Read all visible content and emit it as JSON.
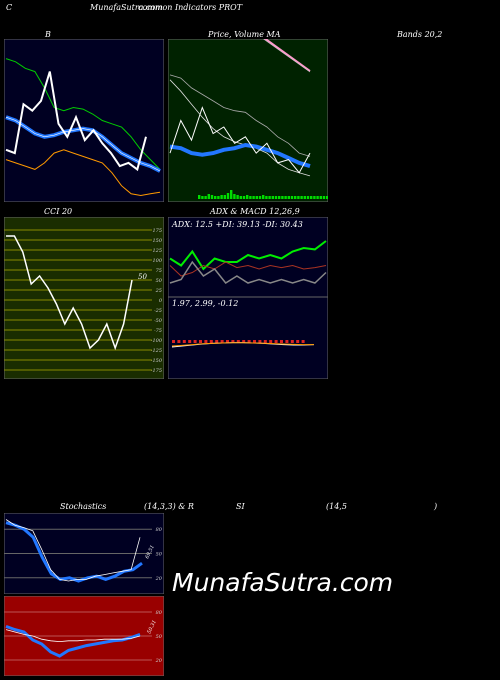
{
  "header": {
    "left_char": "C",
    "title": "MunafaSutra.com",
    "subtitle": "common Indicators PROT"
  },
  "panels": {
    "bollinger": {
      "label": "B",
      "label_right": "Bands 20,2"
    },
    "price_ma": {
      "label": "Price,  Volume  MA"
    },
    "cci": {
      "label": "CCI 20",
      "current_value": "50",
      "ticks": [
        "175",
        "150",
        "125",
        "100",
        "75",
        "50",
        "25",
        "0",
        "-25",
        "-50",
        "-75",
        "-100",
        "-125",
        "-150",
        "-175"
      ]
    },
    "adx": {
      "label": "ADX  & MACD 12,26,9",
      "readout": "ADX: 12.5  +DI: 39.13 -DI: 30.43"
    },
    "macd": {
      "readout": "1.97,  2.99,  -0.12"
    },
    "stoch": {
      "label": "Stochastics",
      "params": "(14,3,3) & R",
      "value_label": "69.51",
      "ticks": [
        "80",
        "50",
        "20"
      ]
    },
    "rsi": {
      "label": "SI",
      "params": "(14,5",
      "params_close": ")",
      "value_label": "50.31",
      "ticks": [
        "80",
        "50",
        "20"
      ]
    }
  },
  "watermark": "MunafaSutra.com",
  "colors": {
    "navy_bg": "#000022",
    "green_bg": "#002200",
    "olive_bg": "#1a2d00",
    "red_bg": "#990000",
    "blue": "#2277ff",
    "green_line": "#00cc00",
    "orange": "#ff9900",
    "white": "#ffffff",
    "pink": "#ff99cc"
  },
  "chart_data": [
    {
      "type": "line",
      "title": "Bollinger Bands 20,2",
      "series": [
        {
          "values": [
            0.88,
            0.86,
            0.82,
            0.8,
            0.7,
            0.58,
            0.56,
            0.58,
            0.57,
            0.54,
            0.5,
            0.48,
            0.46,
            0.4,
            0.32,
            0.26,
            0.2
          ]
        },
        {
          "values": [
            0.52,
            0.5,
            0.46,
            0.42,
            0.4,
            0.41,
            0.43,
            0.44,
            0.45,
            0.44,
            0.4,
            0.35,
            0.3,
            0.27,
            0.24,
            0.22,
            0.19
          ]
        },
        {
          "values": [
            0.26,
            0.24,
            0.22,
            0.2,
            0.24,
            0.3,
            0.32,
            0.3,
            0.28,
            0.26,
            0.24,
            0.18,
            0.1,
            0.05,
            0.04,
            0.05,
            0.06
          ]
        },
        {
          "values": [
            0.32,
            0.3,
            0.6,
            0.56,
            0.62,
            0.8,
            0.48,
            0.4,
            0.52,
            0.38,
            0.44,
            0.36,
            0.3,
            0.22,
            0.24,
            0.2,
            0.4
          ]
        }
      ]
    },
    {
      "type": "line",
      "title": "Price, Volume MA",
      "series": [
        {
          "values": [
            0.75,
            0.68,
            0.6,
            0.52,
            0.45,
            0.4,
            0.37,
            0.35,
            0.33,
            0.3,
            0.24,
            0.2,
            0.18,
            0.16
          ]
        },
        {
          "values": [
            0.78,
            0.76,
            0.7,
            0.66,
            0.62,
            0.58,
            0.56,
            0.55,
            0.5,
            0.46,
            0.4,
            0.36,
            0.3,
            0.28
          ]
        },
        {
          "values": [
            0.34,
            0.33,
            0.3,
            0.29,
            0.3,
            0.32,
            0.33,
            0.35,
            0.34,
            0.32,
            0.3,
            0.27,
            0.24,
            0.22
          ]
        },
        {
          "values": [
            0.3,
            0.5,
            0.38,
            0.58,
            0.42,
            0.46,
            0.36,
            0.4,
            0.3,
            0.36,
            0.24,
            0.26,
            0.18,
            0.3
          ]
        }
      ]
    },
    {
      "type": "line",
      "title": "CCI 20",
      "ylim": [
        -175,
        175
      ],
      "series": [
        {
          "values": [
            160,
            160,
            120,
            40,
            60,
            30,
            -10,
            -60,
            -20,
            -60,
            -120,
            -100,
            -60,
            -120,
            -60,
            50
          ]
        }
      ]
    },
    {
      "type": "line",
      "title": "ADX",
      "series": [
        {
          "values": [
            0.55,
            0.45,
            0.65,
            0.4,
            0.55,
            0.5,
            0.5,
            0.6,
            0.55,
            0.6,
            0.55,
            0.65,
            0.7,
            0.68,
            0.8
          ]
        },
        {
          "values": [
            0.45,
            0.3,
            0.35,
            0.45,
            0.4,
            0.5,
            0.42,
            0.45,
            0.4,
            0.45,
            0.42,
            0.45,
            0.4,
            0.42,
            0.45
          ]
        },
        {
          "values": [
            0.2,
            0.25,
            0.5,
            0.3,
            0.4,
            0.2,
            0.3,
            0.2,
            0.25,
            0.2,
            0.25,
            0.2,
            0.25,
            0.2,
            0.35
          ]
        }
      ]
    },
    {
      "type": "line",
      "title": "MACD 12,26,9",
      "series": [
        {
          "values": [
            0.0,
            0.05,
            0.1,
            0.15,
            0.18,
            0.2,
            0.22,
            0.22,
            0.2,
            0.18,
            0.15,
            0.12,
            0.1,
            0.1,
            0.12
          ]
        },
        {
          "values": [
            0.05,
            0.08,
            0.12,
            0.16,
            0.18,
            0.2,
            0.21,
            0.21,
            0.2,
            0.19,
            0.17,
            0.15,
            0.13,
            0.12,
            0.12
          ]
        }
      ]
    },
    {
      "type": "line",
      "title": "Stochastics (14,3,3)",
      "ylim": [
        0,
        100
      ],
      "series": [
        {
          "values": [
            88,
            85,
            80,
            70,
            45,
            25,
            18,
            20,
            16,
            20,
            22,
            18,
            22,
            28,
            30,
            38
          ]
        },
        {
          "values": [
            92,
            85,
            82,
            78,
            55,
            30,
            18,
            16,
            18,
            18,
            22,
            24,
            26,
            28,
            30,
            70
          ]
        }
      ]
    },
    {
      "type": "line",
      "title": "RSI (14,5)",
      "ylim": [
        0,
        100
      ],
      "series": [
        {
          "values": [
            62,
            58,
            55,
            45,
            40,
            30,
            25,
            32,
            35,
            38,
            40,
            42,
            44,
            45,
            48,
            52
          ]
        },
        {
          "values": [
            58,
            55,
            52,
            50,
            46,
            44,
            43,
            44,
            44,
            45,
            45,
            46,
            46,
            46,
            47,
            50
          ]
        }
      ]
    }
  ]
}
